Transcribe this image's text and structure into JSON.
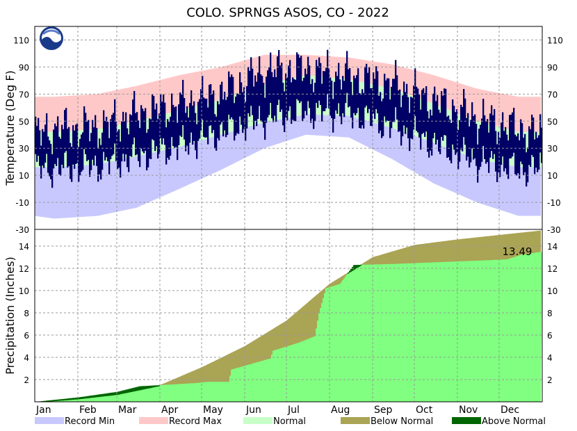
{
  "title": "COLO. SPRNGS ASOS, CO - 2022",
  "colors": {
    "record_min": "#c8c8ff",
    "record_max": "#ffc8c8",
    "normal": "#c8ffc8",
    "observed": "#000066",
    "below_normal": "#aaa455",
    "above_normal": "#006600",
    "precip_fill": "#80ff80",
    "grid": "#999999"
  },
  "logo": "noaa-logo",
  "chart_data": [
    {
      "type": "bar",
      "panel": "temperature",
      "ylabel": "Temperature (Deg F)",
      "ylim": [
        -30,
        120
      ],
      "yticks": [
        -30,
        -10,
        10,
        30,
        50,
        70,
        90,
        110
      ],
      "ytick_labels": [
        "-30",
        "-10",
        "10",
        "30",
        "50",
        "70",
        "90",
        "110"
      ],
      "grid": true,
      "month_starts": [
        1,
        32,
        60,
        91,
        121,
        152,
        182,
        213,
        244,
        274,
        305,
        335
      ],
      "normal_high": {
        "day": [
          1,
          15,
          46,
          74,
          105,
          135,
          166,
          196,
          227,
          258,
          288,
          319,
          349,
          365
        ],
        "value": [
          42,
          42,
          44,
          50,
          58,
          66,
          77,
          84,
          81,
          74,
          63,
          50,
          42,
          42
        ]
      },
      "normal_low": {
        "day": [
          1,
          15,
          46,
          74,
          105,
          135,
          166,
          196,
          227,
          258,
          288,
          319,
          349,
          365
        ],
        "value": [
          16,
          16,
          18,
          24,
          31,
          40,
          49,
          55,
          54,
          45,
          34,
          22,
          16,
          16
        ]
      },
      "record_high": {
        "day": [
          1,
          15,
          46,
          74,
          105,
          135,
          166,
          196,
          227,
          258,
          288,
          319,
          349,
          365
        ],
        "value": [
          68,
          68,
          70,
          76,
          84,
          90,
          99,
          99,
          97,
          92,
          84,
          74,
          68,
          68
        ]
      },
      "record_low": {
        "day": [
          1,
          15,
          46,
          74,
          105,
          135,
          166,
          196,
          227,
          258,
          288,
          319,
          349,
          365
        ],
        "value": [
          -20,
          -22,
          -20,
          -14,
          0,
          14,
          30,
          40,
          38,
          22,
          4,
          -10,
          -20,
          -20
        ]
      },
      "observed_high": {
        "day": [
          1,
          15,
          46,
          74,
          105,
          135,
          166,
          196,
          227,
          258,
          288,
          319,
          349,
          365
        ],
        "value": [
          40,
          44,
          45,
          55,
          62,
          70,
          87,
          88,
          83,
          77,
          65,
          52,
          44,
          40
        ]
      },
      "observed_low": {
        "day": [
          1,
          15,
          46,
          74,
          105,
          135,
          166,
          196,
          227,
          258,
          288,
          319,
          349,
          365
        ],
        "value": [
          15,
          15,
          17,
          24,
          32,
          42,
          52,
          57,
          56,
          46,
          33,
          20,
          14,
          15
        ]
      }
    },
    {
      "type": "area",
      "panel": "precipitation",
      "ylabel": "Precipitation (Inches)",
      "ylim": [
        0,
        15.5
      ],
      "yticks": [
        2,
        4,
        6,
        8,
        10,
        12,
        14
      ],
      "ytick_labels": [
        "2",
        "4",
        "6",
        "8",
        "10",
        "12",
        "14"
      ],
      "grid": true,
      "x_categories": [
        "Jan",
        "Feb",
        "Mar",
        "Apr",
        "May",
        "Jun",
        "Jul",
        "Aug",
        "Sep",
        "Oct",
        "Nov",
        "Dec"
      ],
      "month_starts": [
        1,
        32,
        60,
        91,
        121,
        152,
        182,
        213,
        244,
        274,
        305,
        335
      ],
      "normal_cumulative": {
        "day": [
          1,
          32,
          60,
          91,
          121,
          152,
          182,
          213,
          244,
          274,
          305,
          335,
          365
        ],
        "value": [
          0,
          0.3,
          0.7,
          1.5,
          3.1,
          5.0,
          7.3,
          10.6,
          13.0,
          14.1,
          14.6,
          15.0,
          15.4
        ]
      },
      "observed_cumulative": {
        "day": [
          1,
          32,
          60,
          76,
          91,
          118,
          125,
          140,
          142,
          170,
          172,
          190,
          202,
          205,
          210,
          220,
          230,
          260,
          300,
          340,
          350,
          365
        ],
        "value": [
          0,
          0.4,
          0.9,
          1.4,
          1.5,
          1.7,
          1.8,
          1.8,
          2.9,
          3.9,
          4.6,
          5.3,
          5.9,
          8.0,
          10.2,
          10.6,
          12.3,
          12.4,
          12.6,
          12.8,
          13.2,
          13.49
        ]
      },
      "total_label": "13.49"
    }
  ],
  "legend": [
    {
      "label": "Record Min",
      "color": "#c8c8ff"
    },
    {
      "label": "Record Max",
      "color": "#ffc8c8"
    },
    {
      "label": "Normal",
      "color": "#c8ffc8"
    },
    {
      "label": "Below Normal",
      "color": "#aaa455"
    },
    {
      "label": "Above Normal",
      "color": "#006600"
    }
  ]
}
